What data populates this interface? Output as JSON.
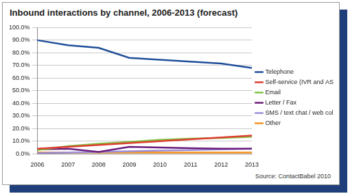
{
  "chart_data": {
    "type": "line",
    "title": "Inbound interactions by channel, 2006-2013 (forecast)",
    "annotations": [
      "Source: ContactBabel 2010"
    ],
    "categories": [
      "2006",
      "2007",
      "2008",
      "2009",
      "2010",
      "2011",
      "2012",
      "2013"
    ],
    "series": [
      {
        "name": "Telephone",
        "color": "#1f4e99",
        "values": [
          90,
          86,
          84,
          76,
          74.5,
          73,
          71.5,
          68
        ]
      },
      {
        "name": "Self-service (IVR and ASR)",
        "color": "#e03c31",
        "values": [
          4,
          5.5,
          7,
          8.5,
          10,
          11.5,
          13,
          14.5
        ]
      },
      {
        "name": "Email",
        "color": "#7dc242",
        "values": [
          3,
          6,
          8,
          9.5,
          11,
          12,
          12.5,
          13.5
        ]
      },
      {
        "name": "Letter / Fax",
        "color": "#6a1b7a",
        "values": [
          3.5,
          4,
          1.5,
          5.5,
          5,
          4.5,
          4,
          4
        ]
      },
      {
        "name": "SMS / text chat / web collaboration",
        "color": "#9b8ed8",
        "values": [
          0.5,
          1,
          1.5,
          2,
          2.5,
          3,
          3.5,
          4
        ]
      },
      {
        "name": "Other",
        "color": "#f7941d",
        "values": [
          1,
          1,
          1,
          1,
          1,
          1,
          1,
          1
        ]
      }
    ],
    "ylim": [
      0,
      100
    ],
    "yticks": [
      {
        "value": 0,
        "label": "0.0%"
      },
      {
        "value": 10,
        "label": "10.0%"
      },
      {
        "value": 20,
        "label": "20.0%"
      },
      {
        "value": 30,
        "label": "30.0%"
      },
      {
        "value": 40,
        "label": "40.0%"
      },
      {
        "value": 50,
        "label": "50.0%"
      },
      {
        "value": 60,
        "label": "60.0%"
      },
      {
        "value": 70,
        "label": "70.0%"
      },
      {
        "value": 80,
        "label": "80.0%"
      },
      {
        "value": 90,
        "label": "90.0%"
      },
      {
        "value": 100,
        "label": "100.0%"
      }
    ],
    "grid": true,
    "legend": "right",
    "marker": "none"
  }
}
